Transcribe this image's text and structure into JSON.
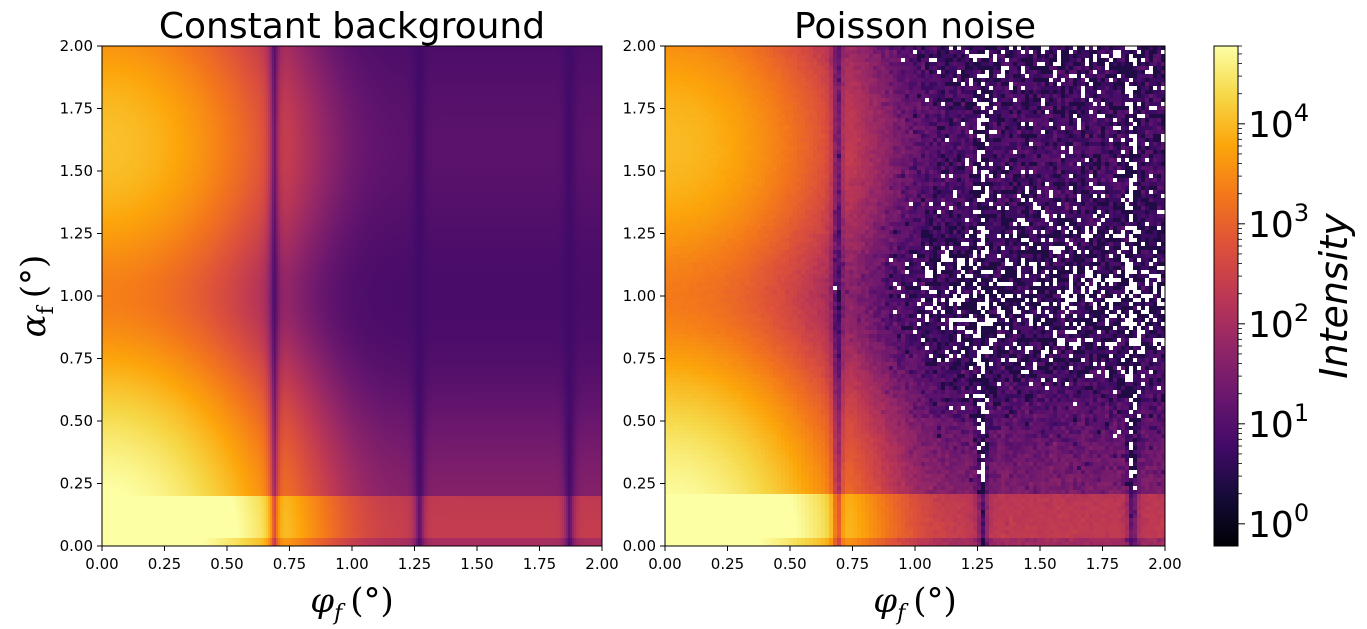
{
  "chart_data": [
    {
      "type": "heatmap",
      "title": "Constant background",
      "xlabel_symbol": "φ",
      "xlabel_sub": "f",
      "xlabel_unit": "(°)",
      "ylabel_symbol": "α",
      "ylabel_sub": "f",
      "ylabel_unit": "(°)",
      "xlim": [
        0,
        2
      ],
      "ylim": [
        0,
        2
      ],
      "x_ticks": [
        "0.00",
        "0.25",
        "0.50",
        "0.75",
        "1.00",
        "1.25",
        "1.50",
        "1.75",
        "2.00"
      ],
      "y_ticks": [
        "0.00",
        "0.25",
        "0.50",
        "0.75",
        "1.00",
        "1.25",
        "1.50",
        "1.75",
        "2.00"
      ],
      "scale": "log",
      "grid": false,
      "colormap": "inferno",
      "intensity_model": {
        "description_free_values": true,
        "minima_phi": [
          0.69,
          1.27,
          1.87
        ],
        "bright_band_alpha": [
          0,
          0.2
        ],
        "peak_intensity": 60000,
        "background_intensity": 6
      },
      "noise": "none"
    },
    {
      "type": "heatmap",
      "title": "Poisson noise",
      "xlabel_symbol": "φ",
      "xlabel_sub": "f",
      "xlabel_unit": "(°)",
      "xlim": [
        0,
        2
      ],
      "ylim": [
        0,
        2
      ],
      "x_ticks": [
        "0.00",
        "0.25",
        "0.50",
        "0.75",
        "1.00",
        "1.25",
        "1.50",
        "1.75",
        "2.00"
      ],
      "y_ticks": [
        "0.00",
        "0.25",
        "0.50",
        "0.75",
        "1.00",
        "1.25",
        "1.50",
        "1.75",
        "2.00"
      ],
      "scale": "log",
      "grid": false,
      "colormap": "inferno",
      "noise": "poisson"
    }
  ],
  "colorbar": {
    "title": "Intensity",
    "scale": "log",
    "range": [
      0.6,
      60000
    ],
    "tick_base": "10",
    "tick_exponents": [
      "0",
      "1",
      "2",
      "3",
      "4"
    ],
    "tick_values": [
      1,
      10,
      100,
      1000,
      10000
    ]
  },
  "colors": {
    "zero_count": "#ffffff",
    "axis": "#000000"
  }
}
